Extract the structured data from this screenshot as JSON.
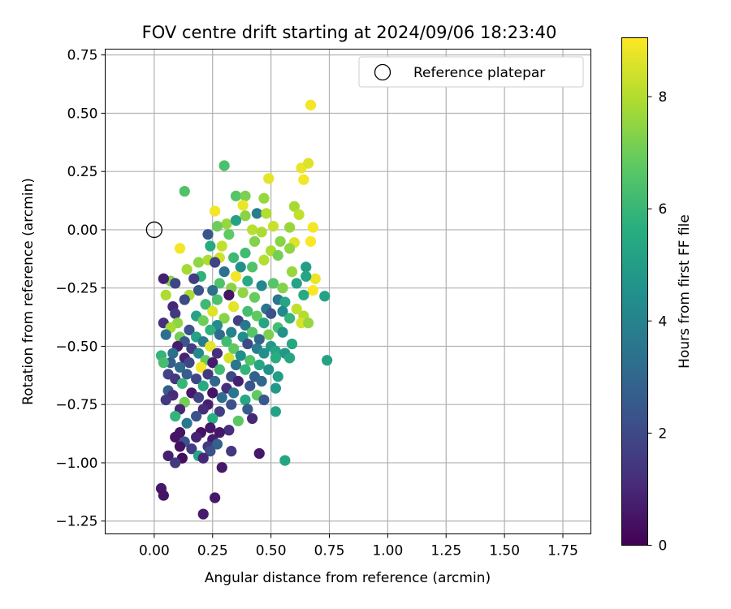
{
  "chart_data": {
    "type": "scatter",
    "title": "FOV centre drift starting at 2024/09/06 18:23:40",
    "xlabel": "Angular distance from reference (arcmin)",
    "ylabel": "Rotation from reference (arcmin)",
    "xlim": [
      -0.21,
      1.87
    ],
    "ylim": [
      -1.305,
      0.775
    ],
    "xticks": [
      0.0,
      0.25,
      0.5,
      0.75,
      1.0,
      1.25,
      1.5,
      1.75
    ],
    "xtick_labels": [
      "0.00",
      "0.25",
      "0.50",
      "0.75",
      "1.00",
      "1.25",
      "1.50",
      "1.75"
    ],
    "yticks": [
      0.75,
      0.5,
      0.25,
      0.0,
      -0.25,
      -0.5,
      -0.75,
      -1.0,
      -1.25
    ],
    "ytick_labels": [
      "0.75",
      "0.50",
      "0.25",
      "0.00",
      "−0.25",
      "−0.50",
      "−0.75",
      "−1.00",
      "−1.25"
    ],
    "grid": true,
    "legend": {
      "placement": "top-right",
      "entries": [
        {
          "label": "Reference platepar",
          "marker": "open-circle"
        }
      ]
    },
    "reference_point": {
      "x": 0.0,
      "y": 0.0
    },
    "colorbar": {
      "label": "Hours from first FF file",
      "min": 0,
      "max": 9.05,
      "ticks": [
        0,
        2,
        4,
        6,
        8
      ],
      "tick_labels": [
        "0",
        "2",
        "4",
        "6",
        "8"
      ],
      "colormap": "viridis"
    },
    "series": [
      {
        "points": [
          [
            0.67,
            0.535,
            8.9
          ],
          [
            0.63,
            0.265,
            8.8
          ],
          [
            0.66,
            0.285,
            8.6
          ],
          [
            0.64,
            0.215,
            8.9
          ],
          [
            0.49,
            0.22,
            8.7
          ],
          [
            0.3,
            0.275,
            6.4
          ],
          [
            0.13,
            0.165,
            6.5
          ],
          [
            0.35,
            0.145,
            6.6
          ],
          [
            0.39,
            0.145,
            7.2
          ],
          [
            0.47,
            0.135,
            7.6
          ],
          [
            0.6,
            0.1,
            7.8
          ],
          [
            0.38,
            0.105,
            8.8
          ],
          [
            0.26,
            0.08,
            8.9
          ],
          [
            0.62,
            0.065,
            8.2
          ],
          [
            0.44,
            0.07,
            3.8
          ],
          [
            0.48,
            0.07,
            8.0
          ],
          [
            0.39,
            0.06,
            7.4
          ],
          [
            0.31,
            0.025,
            7.6
          ],
          [
            0.35,
            0.04,
            5.2
          ],
          [
            0.27,
            0.015,
            7.0
          ],
          [
            0.51,
            0.015,
            8.3
          ],
          [
            0.58,
            0.01,
            7.6
          ],
          [
            0.68,
            0.01,
            8.9
          ],
          [
            0.42,
            0.0,
            8.1
          ],
          [
            0.46,
            -0.01,
            7.9
          ],
          [
            0.32,
            -0.02,
            6.8
          ],
          [
            0.23,
            -0.02,
            2.4
          ],
          [
            0.54,
            -0.05,
            7.4
          ],
          [
            0.6,
            -0.055,
            8.6
          ],
          [
            0.67,
            -0.05,
            9.0
          ],
          [
            0.43,
            -0.05,
            7.3
          ],
          [
            0.29,
            -0.07,
            8.2
          ],
          [
            0.24,
            -0.07,
            5.5
          ],
          [
            0.5,
            -0.09,
            7.9
          ],
          [
            0.39,
            -0.1,
            6.2
          ],
          [
            0.58,
            -0.08,
            7.5
          ],
          [
            0.11,
            -0.08,
            8.9
          ],
          [
            0.34,
            -0.12,
            6.1
          ],
          [
            0.28,
            -0.12,
            8.4
          ],
          [
            0.19,
            -0.14,
            7.5
          ],
          [
            0.23,
            -0.13,
            7.9
          ],
          [
            0.47,
            -0.13,
            8.0
          ],
          [
            0.53,
            -0.11,
            7.1
          ],
          [
            0.65,
            -0.16,
            5.0
          ],
          [
            0.37,
            -0.16,
            4.5
          ],
          [
            0.26,
            -0.14,
            1.8
          ],
          [
            0.14,
            -0.17,
            7.8
          ],
          [
            0.42,
            -0.16,
            6.5
          ],
          [
            0.59,
            -0.18,
            7.6
          ],
          [
            0.3,
            -0.18,
            3.4
          ],
          [
            0.2,
            -0.2,
            5.8
          ],
          [
            0.35,
            -0.2,
            8.9
          ],
          [
            0.69,
            -0.21,
            8.8
          ],
          [
            0.07,
            -0.22,
            7.3
          ],
          [
            0.04,
            -0.21,
            0.8
          ],
          [
            0.09,
            -0.23,
            1.8
          ],
          [
            0.17,
            -0.21,
            1.6
          ],
          [
            0.28,
            -0.23,
            6.5
          ],
          [
            0.4,
            -0.22,
            5.5
          ],
          [
            0.51,
            -0.23,
            6.6
          ],
          [
            0.65,
            -0.2,
            5.3
          ],
          [
            0.61,
            -0.23,
            5.2
          ],
          [
            0.25,
            -0.26,
            3.2
          ],
          [
            0.33,
            -0.25,
            7.4
          ],
          [
            0.46,
            -0.24,
            4.2
          ],
          [
            0.55,
            -0.25,
            7.3
          ],
          [
            0.68,
            -0.26,
            9.0
          ],
          [
            0.38,
            -0.27,
            7.5
          ],
          [
            0.19,
            -0.26,
            2.4
          ],
          [
            0.15,
            -0.28,
            7.9
          ],
          [
            0.05,
            -0.28,
            7.9
          ],
          [
            0.32,
            -0.28,
            0.5
          ],
          [
            0.43,
            -0.29,
            6.9
          ],
          [
            0.27,
            -0.3,
            6.4
          ],
          [
            0.13,
            -0.3,
            2.0
          ],
          [
            0.53,
            -0.3,
            3.5
          ],
          [
            0.56,
            -0.31,
            5.3
          ],
          [
            0.64,
            -0.28,
            5.5
          ],
          [
            0.73,
            -0.285,
            5.2
          ],
          [
            0.08,
            -0.33,
            1.0
          ],
          [
            0.22,
            -0.32,
            6.1
          ],
          [
            0.34,
            -0.33,
            8.7
          ],
          [
            0.48,
            -0.34,
            3.5
          ],
          [
            0.61,
            -0.34,
            8.2
          ],
          [
            0.4,
            -0.35,
            6.3
          ],
          [
            0.55,
            -0.35,
            4.2
          ],
          [
            0.25,
            -0.35,
            8.6
          ],
          [
            0.09,
            -0.36,
            1.5
          ],
          [
            0.18,
            -0.37,
            5.2
          ],
          [
            0.3,
            -0.38,
            7.4
          ],
          [
            0.44,
            -0.37,
            6.8
          ],
          [
            0.5,
            -0.36,
            2.2
          ],
          [
            0.64,
            -0.37,
            8.0
          ],
          [
            0.58,
            -0.38,
            5.9
          ],
          [
            0.36,
            -0.39,
            1.7
          ],
          [
            0.04,
            -0.4,
            1.2
          ],
          [
            0.1,
            -0.4,
            7.5
          ],
          [
            0.21,
            -0.39,
            7.0
          ],
          [
            0.27,
            -0.41,
            4.3
          ],
          [
            0.39,
            -0.41,
            3.5
          ],
          [
            0.47,
            -0.4,
            5.4
          ],
          [
            0.53,
            -0.42,
            6.3
          ],
          [
            0.63,
            -0.4,
            8.5
          ],
          [
            0.66,
            -0.4,
            7.6
          ],
          [
            0.07,
            -0.42,
            7.8
          ],
          [
            0.15,
            -0.43,
            2.3
          ],
          [
            0.24,
            -0.43,
            5.8
          ],
          [
            0.33,
            -0.44,
            4.0
          ],
          [
            0.42,
            -0.44,
            6.6
          ],
          [
            0.49,
            -0.45,
            7.2
          ],
          [
            0.55,
            -0.44,
            4.6
          ],
          [
            0.05,
            -0.45,
            3.3
          ],
          [
            0.11,
            -0.46,
            7.1
          ],
          [
            0.18,
            -0.46,
            5.2
          ],
          [
            0.28,
            -0.45,
            3.1
          ],
          [
            0.38,
            -0.46,
            4.5
          ],
          [
            0.45,
            -0.47,
            2.9
          ],
          [
            0.59,
            -0.49,
            5.4
          ],
          [
            0.13,
            -0.48,
            2.4
          ],
          [
            0.21,
            -0.48,
            3.7
          ],
          [
            0.31,
            -0.48,
            6.2
          ],
          [
            0.4,
            -0.49,
            2.0
          ],
          [
            0.5,
            -0.5,
            4.8
          ],
          [
            0.1,
            -0.5,
            0.7
          ],
          [
            0.16,
            -0.51,
            1.6
          ],
          [
            0.24,
            -0.5,
            8.7
          ],
          [
            0.34,
            -0.51,
            6.8
          ],
          [
            0.44,
            -0.51,
            3.8
          ],
          [
            0.52,
            -0.52,
            5.3
          ],
          [
            0.08,
            -0.53,
            3.3
          ],
          [
            0.19,
            -0.53,
            4.2
          ],
          [
            0.27,
            -0.53,
            1.2
          ],
          [
            0.37,
            -0.54,
            4.4
          ],
          [
            0.47,
            -0.53,
            4.5
          ],
          [
            0.56,
            -0.53,
            4.8
          ],
          [
            0.13,
            -0.55,
            0.9
          ],
          [
            0.22,
            -0.56,
            6.9
          ],
          [
            0.32,
            -0.55,
            8.5
          ],
          [
            0.41,
            -0.56,
            6.5
          ],
          [
            0.52,
            -0.55,
            5.6
          ],
          [
            0.58,
            -0.55,
            5.3
          ],
          [
            0.74,
            -0.56,
            5.2
          ],
          [
            0.03,
            -0.54,
            5.9
          ],
          [
            0.07,
            -0.57,
            2.7
          ],
          [
            0.15,
            -0.57,
            1.9
          ],
          [
            0.25,
            -0.57,
            0.7
          ],
          [
            0.35,
            -0.58,
            3.5
          ],
          [
            0.45,
            -0.58,
            5.3
          ],
          [
            0.04,
            -0.57,
            6.3
          ],
          [
            0.11,
            -0.59,
            3.1
          ],
          [
            0.2,
            -0.59,
            8.9
          ],
          [
            0.28,
            -0.6,
            6.2
          ],
          [
            0.39,
            -0.6,
            5.9
          ],
          [
            0.49,
            -0.6,
            4.5
          ],
          [
            0.06,
            -0.62,
            1.8
          ],
          [
            0.14,
            -0.62,
            2.7
          ],
          [
            0.23,
            -0.62,
            1.5
          ],
          [
            0.33,
            -0.63,
            2.0
          ],
          [
            0.43,
            -0.63,
            2.8
          ],
          [
            0.53,
            -0.63,
            5.0
          ],
          [
            0.09,
            -0.64,
            1.4
          ],
          [
            0.18,
            -0.64,
            1.9
          ],
          [
            0.26,
            -0.65,
            3.0
          ],
          [
            0.36,
            -0.65,
            0.8
          ],
          [
            0.46,
            -0.65,
            3.0
          ],
          [
            0.12,
            -0.66,
            6.0
          ],
          [
            0.21,
            -0.67,
            5.5
          ],
          [
            0.31,
            -0.68,
            1.2
          ],
          [
            0.41,
            -0.67,
            2.4
          ],
          [
            0.52,
            -0.68,
            4.8
          ],
          [
            0.06,
            -0.69,
            2.7
          ],
          [
            0.16,
            -0.7,
            0.6
          ],
          [
            0.25,
            -0.7,
            0.5
          ],
          [
            0.34,
            -0.7,
            3.5
          ],
          [
            0.44,
            -0.71,
            6.8
          ],
          [
            0.08,
            -0.71,
            1.1
          ],
          [
            0.19,
            -0.72,
            1.8
          ],
          [
            0.29,
            -0.72,
            3.2
          ],
          [
            0.39,
            -0.73,
            5.4
          ],
          [
            0.47,
            -0.73,
            2.5
          ],
          [
            0.05,
            -0.73,
            1.5
          ],
          [
            0.13,
            -0.74,
            7.1
          ],
          [
            0.23,
            -0.75,
            0.8
          ],
          [
            0.33,
            -0.75,
            2.2
          ],
          [
            0.11,
            -0.77,
            1.0
          ],
          [
            0.21,
            -0.77,
            1.1
          ],
          [
            0.28,
            -0.78,
            1.6
          ],
          [
            0.4,
            -0.77,
            2.6
          ],
          [
            0.52,
            -0.78,
            5.2
          ],
          [
            0.09,
            -0.8,
            5.9
          ],
          [
            0.18,
            -0.8,
            2.3
          ],
          [
            0.25,
            -0.81,
            5.6
          ],
          [
            0.36,
            -0.82,
            6.7
          ],
          [
            0.42,
            -0.81,
            1.0
          ],
          [
            0.14,
            -0.83,
            3.6
          ],
          [
            0.24,
            -0.85,
            0.6
          ],
          [
            0.32,
            -0.86,
            1.2
          ],
          [
            0.11,
            -0.87,
            0.5
          ],
          [
            0.2,
            -0.87,
            0.4
          ],
          [
            0.28,
            -0.87,
            0.6
          ],
          [
            0.09,
            -0.89,
            0.5
          ],
          [
            0.18,
            -0.89,
            0.9
          ],
          [
            0.25,
            -0.9,
            0.7
          ],
          [
            0.13,
            -0.91,
            2.3
          ],
          [
            0.23,
            -0.93,
            1.5
          ],
          [
            0.27,
            -0.92,
            2.8
          ],
          [
            0.11,
            -0.93,
            0.4
          ],
          [
            0.16,
            -0.94,
            1.6
          ],
          [
            0.24,
            -0.95,
            2.2
          ],
          [
            0.33,
            -0.95,
            1.4
          ],
          [
            0.45,
            -0.96,
            0.6
          ],
          [
            0.06,
            -0.97,
            0.8
          ],
          [
            0.12,
            -0.98,
            0.3
          ],
          [
            0.19,
            -0.97,
            5.3
          ],
          [
            0.09,
            -1.0,
            1.5
          ],
          [
            0.21,
            -0.98,
            1.0
          ],
          [
            0.56,
            -0.99,
            5.3
          ],
          [
            0.29,
            -1.02,
            0.6
          ],
          [
            0.03,
            -1.11,
            0.6
          ],
          [
            0.04,
            -1.14,
            0.5
          ],
          [
            0.26,
            -1.15,
            0.6
          ],
          [
            0.21,
            -1.22,
            0.7
          ]
        ]
      }
    ]
  }
}
